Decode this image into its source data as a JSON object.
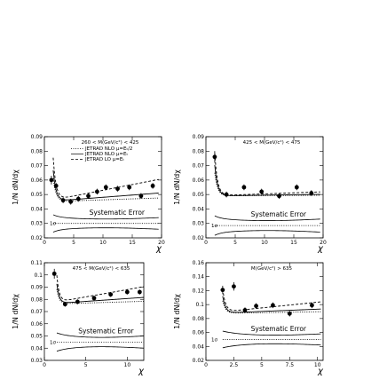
{
  "chart_data": [
    {
      "type": "scatter",
      "title": "260 < M(GeV/c²) < 425",
      "ylabel": "1/N dN/dχ",
      "xlabel": "χ",
      "xlim": [
        0,
        20
      ],
      "ylim": [
        0.02,
        0.09
      ],
      "xticks": [
        "0",
        "5",
        "10",
        "15",
        "20"
      ],
      "yticks": [
        "0.02",
        "0.03",
        "0.04",
        "0.05",
        "0.06",
        "0.07",
        "0.08",
        "0.09"
      ],
      "legend": [
        "JETRAD NLO μ=Eₜ/2",
        "JETRAD NLO μ=Eₜ",
        "JETRAD LO μ=Eₜ"
      ],
      "points": [
        {
          "x": 1.2,
          "y": 0.06,
          "err": 0.003
        },
        {
          "x": 2.0,
          "y": 0.056,
          "err": 0.002
        },
        {
          "x": 3.2,
          "y": 0.046,
          "err": 0.002
        },
        {
          "x": 4.5,
          "y": 0.045,
          "err": 0.002
        },
        {
          "x": 5.8,
          "y": 0.047,
          "err": 0.002
        },
        {
          "x": 7.5,
          "y": 0.049,
          "err": 0.002
        },
        {
          "x": 9.0,
          "y": 0.052,
          "err": 0.002
        },
        {
          "x": 10.5,
          "y": 0.055,
          "err": 0.002
        },
        {
          "x": 12.5,
          "y": 0.054,
          "err": 0.002
        },
        {
          "x": 14.5,
          "y": 0.055,
          "err": 0.002
        },
        {
          "x": 16.5,
          "y": 0.049,
          "err": 0.002
        },
        {
          "x": 18.5,
          "y": 0.056,
          "err": 0.002
        }
      ],
      "systematic_label": "Systematic Error",
      "sigma_label": "1σ"
    },
    {
      "type": "scatter",
      "title": "425 < M(GeV/c²) < 475",
      "ylabel": "1/N dN/dχ",
      "xlabel": "χ",
      "xlim": [
        0,
        20
      ],
      "ylim": [
        0.02,
        0.09
      ],
      "xticks": [
        "0",
        "5",
        "10",
        "15",
        "20"
      ],
      "yticks": [
        "0.02",
        "0.03",
        "0.04",
        "0.05",
        "0.06",
        "0.07",
        "0.08",
        "0.09"
      ],
      "points": [
        {
          "x": 1.5,
          "y": 0.076,
          "err": 0.004
        },
        {
          "x": 3.5,
          "y": 0.05,
          "err": 0.002
        },
        {
          "x": 6.5,
          "y": 0.055,
          "err": 0.002
        },
        {
          "x": 9.5,
          "y": 0.052,
          "err": 0.002
        },
        {
          "x": 12.5,
          "y": 0.049,
          "err": 0.002
        },
        {
          "x": 15.5,
          "y": 0.055,
          "err": 0.002
        },
        {
          "x": 18.0,
          "y": 0.051,
          "err": 0.002
        }
      ],
      "systematic_label": "Systematic Error",
      "sigma_label": "1σ"
    },
    {
      "type": "scatter",
      "title": "475 < M(GeV/c²) < 635",
      "ylabel": "1/N dN/dχ",
      "xlabel": "χ",
      "xlim": [
        0,
        12
      ],
      "ylim": [
        0.03,
        0.11
      ],
      "xticks": [
        "0",
        "5",
        "10"
      ],
      "yticks": [
        "0.03",
        "0.04",
        "0.05",
        "0.06",
        "0.07",
        "0.08",
        "0.09",
        "0.1",
        "0.11"
      ],
      "points": [
        {
          "x": 1.2,
          "y": 0.101,
          "err": 0.004
        },
        {
          "x": 2.5,
          "y": 0.076,
          "err": 0.002
        },
        {
          "x": 4.0,
          "y": 0.078,
          "err": 0.002
        },
        {
          "x": 6.0,
          "y": 0.081,
          "err": 0.002
        },
        {
          "x": 8.0,
          "y": 0.084,
          "err": 0.002
        },
        {
          "x": 10.0,
          "y": 0.086,
          "err": 0.002
        },
        {
          "x": 11.5,
          "y": 0.086,
          "err": 0.002
        }
      ],
      "systematic_label": "Systematic Error",
      "sigma_label": "1σ"
    },
    {
      "type": "scatter",
      "title": "M(GeV/c²) > 635",
      "ylabel": "1/N dN/dχ",
      "xlabel": "χ",
      "xlim": [
        0,
        10.5
      ],
      "ylim": [
        0.02,
        0.16
      ],
      "xticks": [
        "0",
        "2.5",
        "5",
        "7.5",
        "10"
      ],
      "yticks": [
        "0.02",
        "0.04",
        "0.06",
        "0.08",
        "0.1",
        "0.12",
        "0.14",
        "0.16"
      ],
      "points": [
        {
          "x": 1.5,
          "y": 0.121,
          "err": 0.006
        },
        {
          "x": 2.5,
          "y": 0.126,
          "err": 0.006
        },
        {
          "x": 3.5,
          "y": 0.092,
          "err": 0.004
        },
        {
          "x": 4.5,
          "y": 0.098,
          "err": 0.004
        },
        {
          "x": 6.0,
          "y": 0.099,
          "err": 0.004
        },
        {
          "x": 7.5,
          "y": 0.087,
          "err": 0.004
        },
        {
          "x": 9.5,
          "y": 0.099,
          "err": 0.004
        }
      ],
      "systematic_label": "Systematic Error",
      "sigma_label": "1σ"
    }
  ]
}
